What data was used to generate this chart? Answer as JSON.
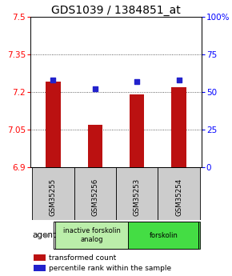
{
  "title": "GDS1039 / 1384851_at",
  "samples": [
    "GSM35255",
    "GSM35256",
    "GSM35253",
    "GSM35254"
  ],
  "bar_values": [
    7.24,
    7.07,
    7.19,
    7.22
  ],
  "dot_values": [
    58,
    52,
    57,
    58
  ],
  "ylim_left": [
    6.9,
    7.5
  ],
  "ylim_right": [
    0,
    100
  ],
  "yticks_left": [
    6.9,
    7.05,
    7.2,
    7.35,
    7.5
  ],
  "yticks_right": [
    0,
    25,
    50,
    75,
    100
  ],
  "ytick_labels_left": [
    "6.9",
    "7.05",
    "7.2",
    "7.35",
    "7.5"
  ],
  "ytick_labels_right": [
    "0",
    "25",
    "50",
    "75",
    "100%"
  ],
  "bar_color": "#bb1111",
  "dot_color": "#2222cc",
  "bar_bottom": 6.9,
  "groups": [
    {
      "label": "inactive forskolin\nanalog",
      "indices": [
        0,
        1
      ],
      "color": "#bbeeaa"
    },
    {
      "label": "forskolin",
      "indices": [
        2,
        3
      ],
      "color": "#44dd44"
    }
  ],
  "agent_label": "agent",
  "legend_bar_label": "transformed count",
  "legend_dot_label": "percentile rank within the sample",
  "grid_color": "#333333",
  "sample_box_color": "#cccccc",
  "title_fontsize": 10,
  "tick_fontsize": 7.5,
  "label_fontsize": 7
}
